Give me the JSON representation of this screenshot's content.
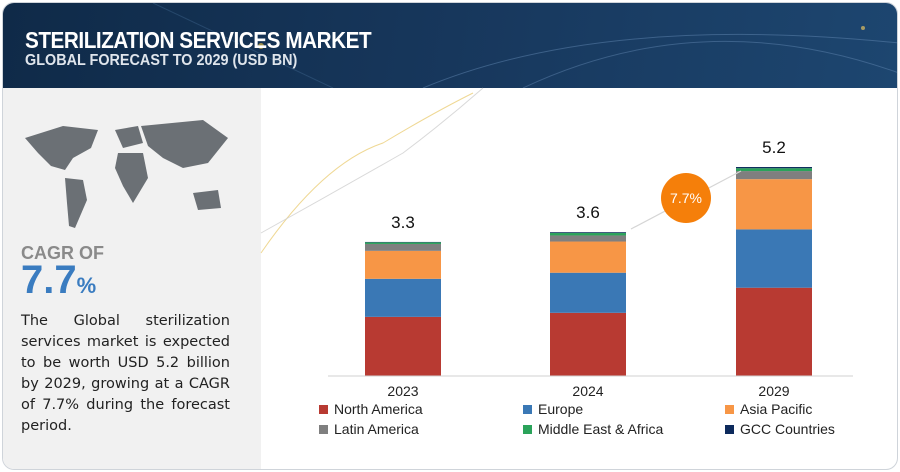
{
  "header": {
    "title": "STERILIZATION SERVICES MARKET",
    "subtitle": "GLOBAL FORECAST TO 2029 (USD BN)"
  },
  "sidebar": {
    "cagr_label": "CAGR OF",
    "cagr_value": "7.7",
    "cagr_unit": "%",
    "description": "The Global sterilization services market is expected to be worth USD 5.2 billion by 2029, growing at a CAGR of 7.7% during the forecast period."
  },
  "chart_data": {
    "type": "bar",
    "stacked": true,
    "categories": [
      "2023",
      "2024",
      "2029"
    ],
    "totals": [
      "3.3",
      "3.6",
      "5.2"
    ],
    "series": [
      {
        "name": "North America",
        "color": "#b83a32",
        "values": [
          1.46,
          1.56,
          2.18
        ]
      },
      {
        "name": "Europe",
        "color": "#3a78b5",
        "values": [
          0.94,
          0.99,
          1.44
        ]
      },
      {
        "name": "Asia Pacific",
        "color": "#f79646",
        "values": [
          0.69,
          0.77,
          1.24
        ]
      },
      {
        "name": "Latin America",
        "color": "#7f7f7f",
        "values": [
          0.17,
          0.15,
          0.2
        ]
      },
      {
        "name": "Middle East & Africa",
        "color": "#2aa35a",
        "values": [
          0.04,
          0.06,
          0.07
        ]
      },
      {
        "name": "GCC Countries",
        "color": "#0d2a5c",
        "values": [
          0.01,
          0.02,
          0.03
        ]
      }
    ],
    "annotation": "7.7%",
    "annotation_color": "#f57f0a",
    "ylim": [
      0,
      5.2
    ],
    "grid": false,
    "legend": "bottom"
  }
}
